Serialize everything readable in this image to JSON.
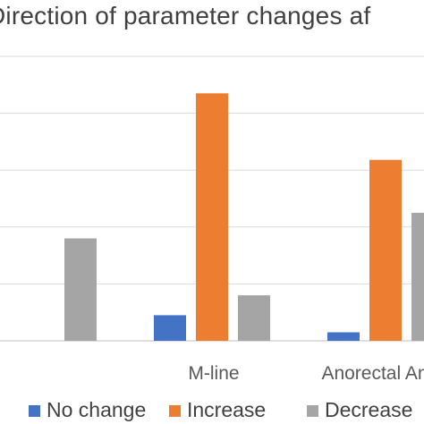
{
  "chart_data": {
    "type": "bar",
    "title": "Direction of parameter changes af",
    "categories": [
      "",
      "M-line",
      "Anorectal Angle"
    ],
    "series": [
      {
        "name": "No change",
        "color": "#4472C4",
        "values": [
          null,
          4.5,
          1.5
        ]
      },
      {
        "name": "Increase",
        "color": "#ED7D31",
        "values": [
          null,
          43.5,
          31.8
        ]
      },
      {
        "name": "Decrease",
        "color": "#A5A5A5",
        "values": [
          18,
          8,
          22.5
        ]
      }
    ],
    "ylim": [
      0,
      50
    ],
    "gridlines": [
      0,
      10,
      20,
      30,
      40,
      50
    ],
    "grid": true,
    "legend_position": "bottom"
  }
}
